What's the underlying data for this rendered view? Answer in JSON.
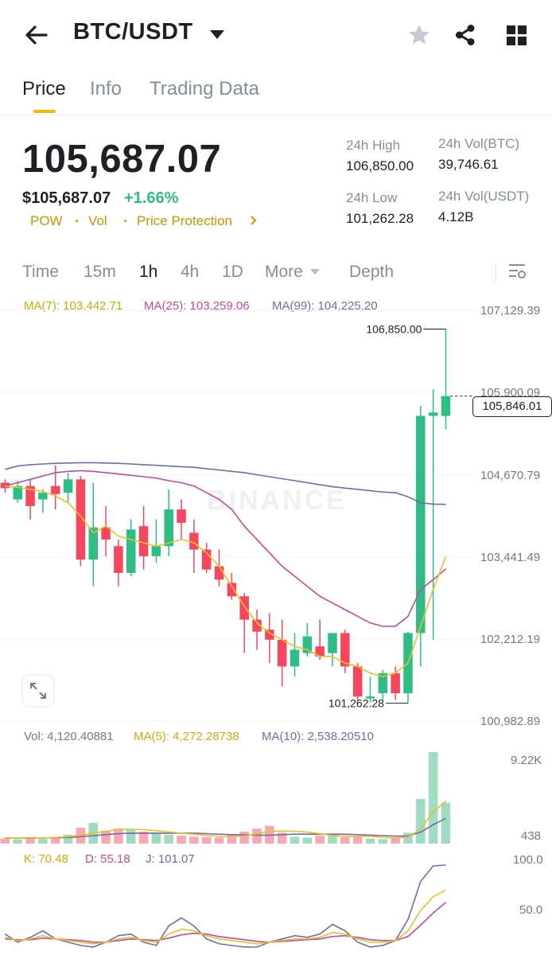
{
  "header": {
    "pair": "BTC/USDT",
    "icons": [
      "back-arrow-icon",
      "dropdown-caret-icon",
      "star-icon",
      "share-icon",
      "grid-icon"
    ]
  },
  "tabs": [
    {
      "label": "Price",
      "active": true
    },
    {
      "label": "Info",
      "active": false
    },
    {
      "label": "Trading Data",
      "active": false
    }
  ],
  "price": {
    "last": "105,687.07",
    "usd": "$105,687.07",
    "change": "+1.66%",
    "tags": [
      "POW",
      "Vol",
      "Price Protection"
    ]
  },
  "stats": {
    "high_label": "24h High",
    "high": "106,850.00",
    "low_label": "24h Low",
    "low": "101,262.28",
    "vol_btc_label": "24h Vol(BTC)",
    "vol_btc": "39,746.61",
    "vol_usdt_label": "24h Vol(USDT)",
    "vol_usdt": "4.12B"
  },
  "timeframes": {
    "items": [
      "Time",
      "15m",
      "1h",
      "4h",
      "1D",
      "More",
      "Depth"
    ],
    "active": "1h"
  },
  "indicators": {
    "ma7": "MA(7): 103,442.71",
    "ma25": "MA(25): 103,259.06",
    "ma99": "MA(99): 104,225.20",
    "vol": "Vol: 4,120.40881",
    "vol_ma5": "MA(5): 4,272.28738",
    "vol_ma10": "MA(10): 2,538.20510",
    "k": "K: 70.48",
    "d": "D: 55.18",
    "j": "J: 101.07"
  },
  "price_axis": [
    "107,129.39",
    "105,900.09",
    "104,670.79",
    "103,441.49",
    "102,212.19",
    "100,982.89"
  ],
  "volume_axis": [
    "9.22K",
    "438"
  ],
  "kdj_axis": [
    "100.0",
    "50.0"
  ],
  "markers": {
    "high": "106,850.00",
    "low": "101,262.28",
    "current": "105,846.01"
  },
  "watermark": "BINANCE",
  "colors": {
    "up": "#2ebd85",
    "down": "#f6465d",
    "accent": "#f0b90b",
    "ma7": "#e6c229",
    "ma25": "#c54a9a",
    "ma99": "#7a66b0"
  },
  "chart_data": {
    "type": "candlestick",
    "interval": "1h",
    "ylim": [
      100982.89,
      107129.39
    ],
    "candles": [
      {
        "o": 104550,
        "h": 104600,
        "l": 104400,
        "c": 104470
      },
      {
        "o": 104300,
        "h": 104580,
        "l": 104250,
        "c": 104500
      },
      {
        "o": 104500,
        "h": 104600,
        "l": 104000,
        "c": 104200
      },
      {
        "o": 104300,
        "h": 104450,
        "l": 104100,
        "c": 104400
      },
      {
        "o": 104500,
        "h": 104810,
        "l": 104150,
        "c": 104380
      },
      {
        "o": 104400,
        "h": 104700,
        "l": 104250,
        "c": 104600
      },
      {
        "o": 104600,
        "h": 104650,
        "l": 103300,
        "c": 103400
      },
      {
        "o": 103400,
        "h": 104550,
        "l": 103000,
        "c": 103880
      },
      {
        "o": 103880,
        "h": 104200,
        "l": 103450,
        "c": 103700
      },
      {
        "o": 103600,
        "h": 103700,
        "l": 103000,
        "c": 103200
      },
      {
        "o": 103200,
        "h": 104000,
        "l": 103150,
        "c": 103850
      },
      {
        "o": 103900,
        "h": 104200,
        "l": 103250,
        "c": 103450
      },
      {
        "o": 103450,
        "h": 104000,
        "l": 103350,
        "c": 103600
      },
      {
        "o": 103600,
        "h": 104450,
        "l": 103450,
        "c": 104150
      },
      {
        "o": 104150,
        "h": 104300,
        "l": 103700,
        "c": 103950
      },
      {
        "o": 103800,
        "h": 104000,
        "l": 103200,
        "c": 103550
      },
      {
        "o": 103550,
        "h": 103650,
        "l": 103200,
        "c": 103250
      },
      {
        "o": 103300,
        "h": 103550,
        "l": 103000,
        "c": 103100
      },
      {
        "o": 103050,
        "h": 103200,
        "l": 102800,
        "c": 102850
      },
      {
        "o": 102850,
        "h": 102900,
        "l": 102000,
        "c": 102500
      },
      {
        "o": 102500,
        "h": 102650,
        "l": 102050,
        "c": 102320
      },
      {
        "o": 102350,
        "h": 102600,
        "l": 101850,
        "c": 102200
      },
      {
        "o": 102200,
        "h": 102500,
        "l": 101500,
        "c": 101800
      },
      {
        "o": 101800,
        "h": 102300,
        "l": 101650,
        "c": 102050
      },
      {
        "o": 102000,
        "h": 102450,
        "l": 101950,
        "c": 102250
      },
      {
        "o": 102100,
        "h": 102500,
        "l": 101900,
        "c": 101950
      },
      {
        "o": 102000,
        "h": 102300,
        "l": 101800,
        "c": 102300
      },
      {
        "o": 102300,
        "h": 102350,
        "l": 101700,
        "c": 101800
      },
      {
        "o": 101800,
        "h": 101850,
        "l": 101300,
        "c": 101350
      },
      {
        "o": 101320,
        "h": 101650,
        "l": 101262.28,
        "c": 101350
      },
      {
        "o": 101400,
        "h": 101750,
        "l": 101300,
        "c": 101700
      },
      {
        "o": 101700,
        "h": 101800,
        "l": 101300,
        "c": 101400
      },
      {
        "o": 101400,
        "h": 102320,
        "l": 101250,
        "c": 102300
      },
      {
        "o": 102300,
        "h": 105700,
        "l": 101800,
        "c": 105550
      },
      {
        "o": 105550,
        "h": 105950,
        "l": 102200,
        "c": 105600
      },
      {
        "o": 105550,
        "h": 106850,
        "l": 105350,
        "c": 105846.01
      }
    ],
    "ma7": [
      104500,
      104480,
      104450,
      104420,
      104350,
      104250,
      104050,
      103800,
      103900,
      103750,
      103700,
      103650,
      103600,
      103650,
      103700,
      103650,
      103500,
      103300,
      103000,
      102700,
      102450,
      102300,
      102200,
      102100,
      102050,
      101950,
      101950,
      101850,
      101800,
      101700,
      101650,
      101700,
      101850,
      102400,
      102950,
      103442.71
    ],
    "ma25": [
      104500,
      104550,
      104600,
      104650,
      104700,
      104720,
      104730,
      104720,
      104700,
      104680,
      104660,
      104640,
      104620,
      104580,
      104550,
      104500,
      104400,
      104300,
      104150,
      103900,
      103700,
      103500,
      103300,
      103150,
      103000,
      102850,
      102750,
      102650,
      102550,
      102450,
      102400,
      102400,
      102550,
      102950,
      103100,
      103259.06
    ],
    "ma99": [
      104750,
      104800,
      104820,
      104830,
      104840,
      104845,
      104850,
      104850,
      104845,
      104840,
      104830,
      104820,
      104810,
      104800,
      104790,
      104780,
      104760,
      104740,
      104720,
      104700,
      104670,
      104640,
      104610,
      104580,
      104550,
      104520,
      104490,
      104470,
      104450,
      104430,
      104410,
      104400,
      104340,
      104250,
      104230,
      104225.2
    ],
    "volume": [
      520,
      430,
      600,
      480,
      560,
      900,
      1600,
      2100,
      1300,
      1500,
      1400,
      1200,
      1100,
      900,
      800,
      700,
      650,
      600,
      900,
      1200,
      1500,
      1800,
      1100,
      700,
      600,
      800,
      900,
      650,
      700,
      500,
      450,
      550,
      1100,
      4500,
      9220,
      4120.41
    ],
    "vol_ma5": [
      560,
      580,
      600,
      580,
      620,
      700,
      830,
      1050,
      1200,
      1450,
      1450,
      1400,
      1300,
      1180,
      1050,
      940,
      830,
      730,
      700,
      770,
      980,
      1230,
      1270,
      1250,
      1150,
      1000,
      810,
      730,
      730,
      720,
      640,
      560,
      660,
      1460,
      3170,
      4272.29
    ],
    "vol_ma10": [
      550,
      560,
      570,
      580,
      590,
      610,
      700,
      800,
      900,
      1000,
      1050,
      1050,
      1050,
      1050,
      1050,
      1050,
      1000,
      950,
      900,
      870,
      850,
      850,
      900,
      950,
      950,
      950,
      950,
      950,
      900,
      850,
      800,
      750,
      760,
      1150,
      1900,
      2538.21
    ],
    "kdj_k": [
      12,
      8,
      10,
      14,
      10,
      8,
      6,
      4,
      6,
      10,
      12,
      8,
      6,
      16,
      22,
      20,
      14,
      10,
      8,
      6,
      4,
      6,
      8,
      10,
      10,
      12,
      18,
      16,
      10,
      6,
      6,
      8,
      20,
      45,
      62,
      70.48
    ],
    "kdj_d": [
      10,
      9,
      9,
      11,
      10,
      9,
      8,
      6,
      6,
      8,
      10,
      9,
      8,
      11,
      15,
      17,
      16,
      13,
      11,
      9,
      7,
      6,
      7,
      8,
      9,
      10,
      13,
      14,
      12,
      9,
      8,
      8,
      13,
      27,
      42,
      55.18
    ],
    "kdj_j": [
      16,
      6,
      12,
      20,
      10,
      6,
      2,
      0,
      6,
      14,
      16,
      6,
      2,
      26,
      36,
      26,
      10,
      4,
      2,
      0,
      0,
      6,
      10,
      14,
      12,
      16,
      28,
      20,
      6,
      0,
      2,
      8,
      34,
      81,
      100,
      101.07
    ]
  }
}
